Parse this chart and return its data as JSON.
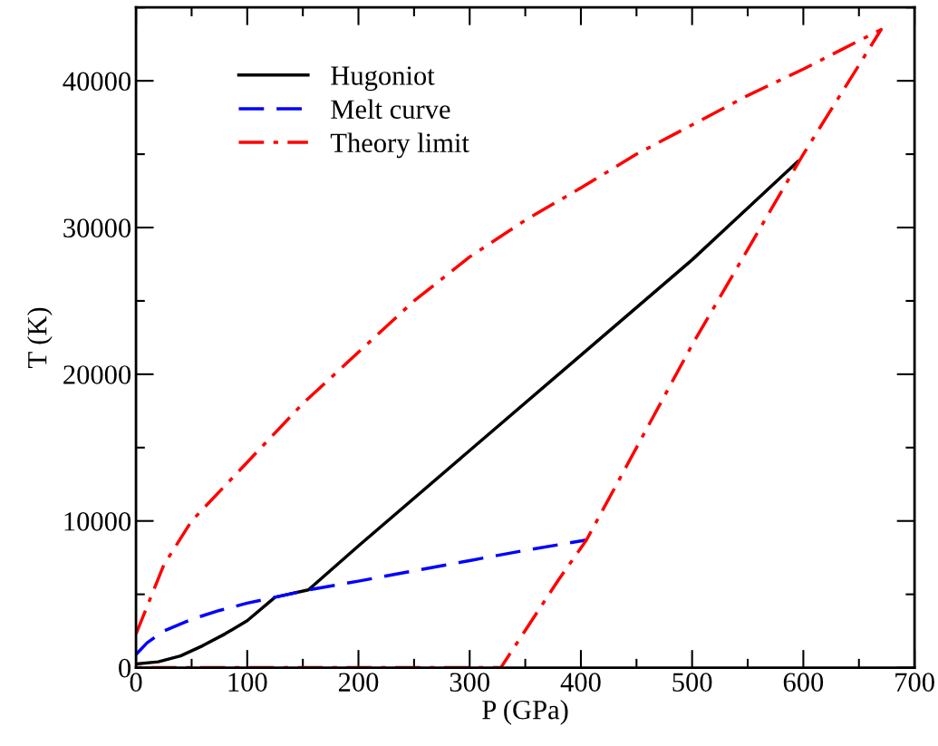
{
  "chart_data": {
    "type": "line",
    "xlabel": "P (GPa)",
    "ylabel": "T (K)",
    "xlim": [
      0,
      700
    ],
    "ylim": [
      0,
      45000
    ],
    "xticks": [
      0,
      100,
      200,
      300,
      400,
      500,
      600,
      700
    ],
    "yticks": [
      0,
      10000,
      20000,
      30000,
      40000
    ],
    "grid": false,
    "legend": "top left",
    "marker": "none",
    "series": [
      {
        "name": "Hugoniot",
        "color": "#000000",
        "line_style": "solid",
        "x": [
          0,
          20,
          40,
          60,
          80,
          100,
          125,
          155,
          200,
          300,
          400,
          500,
          595
        ],
        "values": [
          250,
          400,
          800,
          1500,
          2300,
          3200,
          4800,
          5300,
          8300,
          14800,
          21300,
          27800,
          34500
        ]
      },
      {
        "name": "Melt curve",
        "color": "#0000ff",
        "line_style": "dashed",
        "x": [
          0,
          10,
          25,
          50,
          75,
          100,
          125,
          155,
          200,
          250,
          300,
          350,
          405
        ],
        "values": [
          900,
          1700,
          2500,
          3300,
          3900,
          4400,
          4800,
          5300,
          5900,
          6600,
          7300,
          8000,
          8700
        ]
      },
      {
        "name": "Theory limit",
        "color": "#ff0000",
        "line_style": "dashdot",
        "x": [
          0,
          25,
          50,
          100,
          150,
          200,
          250,
          300,
          350,
          400,
          450,
          500,
          550,
          600,
          670,
          600,
          500,
          405,
          380,
          328,
          0
        ],
        "values": [
          2300,
          7000,
          10000,
          14000,
          18000,
          21500,
          25000,
          28000,
          30500,
          32700,
          35000,
          37000,
          39000,
          40800,
          43500,
          35000,
          22000,
          8700,
          6000,
          0,
          0
        ]
      }
    ]
  }
}
